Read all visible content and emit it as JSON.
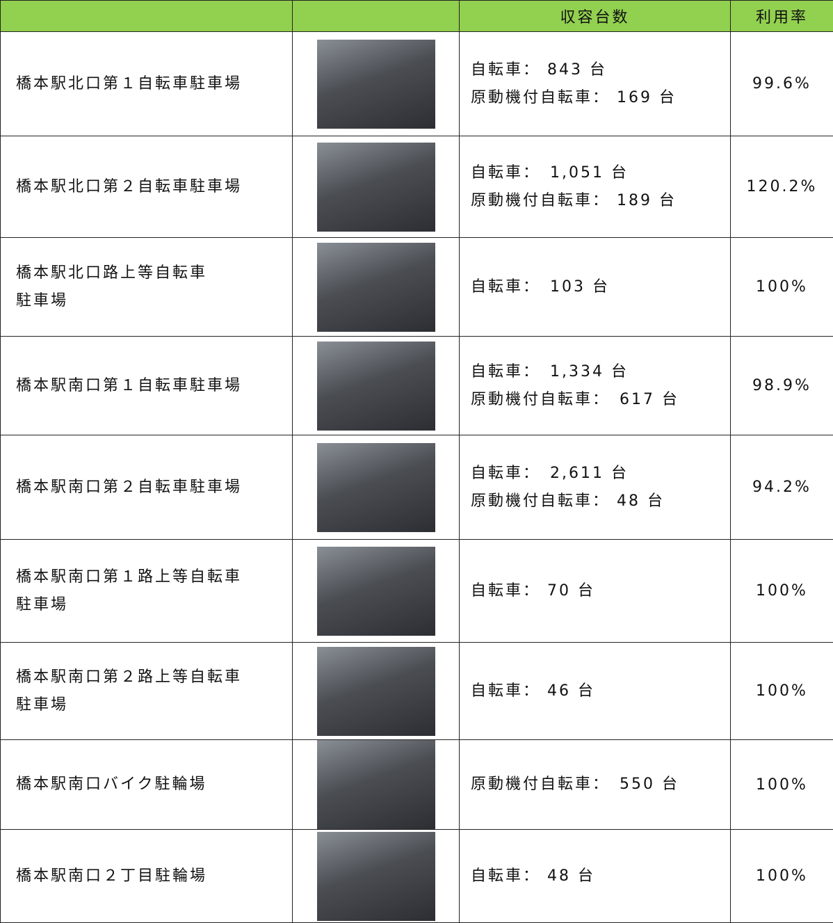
{
  "header": {
    "capacity": "収容台数",
    "rate": "利用率"
  },
  "rows": [
    {
      "name": [
        "橋本駅北口第１自転車駐車場"
      ],
      "capacity": [
        "自転車： 843 台",
        "原動機付自転車： 169 台"
      ],
      "rate": "99.6%"
    },
    {
      "name": [
        "橋本駅北口第２自転車駐車場"
      ],
      "capacity": [
        "自転車：　1,051 台",
        "原動機付自転車： 189 台"
      ],
      "rate": "120.2%"
    },
    {
      "name": [
        "橋本駅北口路上等自転車",
        "駐車場"
      ],
      "capacity": [
        "自転車：　103 台"
      ],
      "rate": "100%"
    },
    {
      "name": [
        "橋本駅南口第１自転車駐車場"
      ],
      "capacity": [
        "自転車：　1,334 台",
        "原動機付自転車：　617 台"
      ],
      "rate": "98.9%"
    },
    {
      "name": [
        "橋本駅南口第２自転車駐車場"
      ],
      "capacity": [
        "自転車：　2,611 台",
        "原動機付自転車： 48 台"
      ],
      "rate": "94.2%"
    },
    {
      "name": [
        "橋本駅南口第１路上等自転車",
        "駐車場"
      ],
      "capacity": [
        "自転車： 70 台"
      ],
      "rate": "100%"
    },
    {
      "name": [
        "橋本駅南口第２路上等自転車",
        "駐車場"
      ],
      "capacity": [
        "自転車： 46 台"
      ],
      "rate": "100%"
    },
    {
      "name": [
        "橋本駅南口バイク駐輪場"
      ],
      "capacity": [
        "原動機付自転車：　550 台"
      ],
      "rate": "100%"
    },
    {
      "name": [
        "橋本駅南口２丁目駐輪場"
      ],
      "capacity": [
        "自転車： 48 台"
      ],
      "rate": "100%"
    }
  ]
}
